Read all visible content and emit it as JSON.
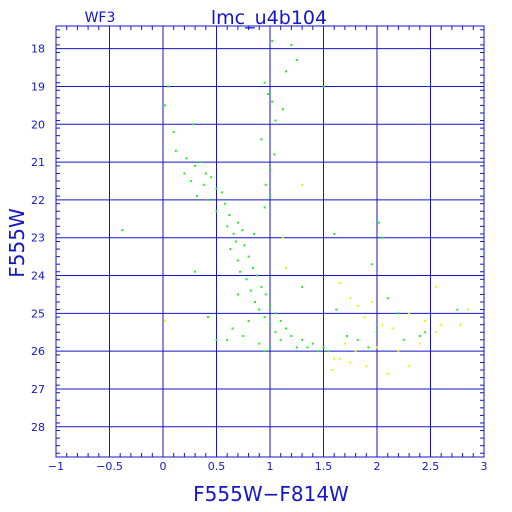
{
  "colors": {
    "axis": "#1515c8",
    "main_points": "#22ee22",
    "secondary_points": "#f2f200",
    "background": "#ffffff"
  },
  "chart_data": {
    "type": "scatter",
    "title": "lmc_u4b104",
    "panel_label": "WF3",
    "xlabel": "F555W−F814W",
    "ylabel": "F555W",
    "xlim": [
      -1,
      3
    ],
    "ylim": [
      28.8,
      17.4
    ],
    "y_inverted": true,
    "grid": true,
    "x_ticks": [
      -1,
      -0.5,
      0,
      0.5,
      1,
      1.5,
      2,
      2.5,
      3
    ],
    "x_tick_labels": [
      "−1",
      "−0.5",
      "0",
      "0.5",
      "1",
      "1.5",
      "2",
      "2.5",
      "3"
    ],
    "y_ticks": [
      18,
      19,
      20,
      21,
      22,
      23,
      24,
      25,
      26,
      27,
      28
    ],
    "y_tick_labels": [
      "18",
      "19",
      "20",
      "21",
      "22",
      "23",
      "24",
      "25",
      "26",
      "27",
      "28"
    ],
    "series": [
      {
        "color": "green",
        "points": [
          [
            0.05,
            19.0
          ],
          [
            0.02,
            19.5
          ],
          [
            0.1,
            20.2
          ],
          [
            0.28,
            20.0
          ],
          [
            0.12,
            20.7
          ],
          [
            0.22,
            20.9
          ],
          [
            0.3,
            21.1
          ],
          [
            0.35,
            21.0
          ],
          [
            0.4,
            21.3
          ],
          [
            0.2,
            21.3
          ],
          [
            0.26,
            21.5
          ],
          [
            0.38,
            21.6
          ],
          [
            0.45,
            21.4
          ],
          [
            0.5,
            21.7
          ],
          [
            0.55,
            21.8
          ],
          [
            0.32,
            21.9
          ],
          [
            0.42,
            22.0
          ],
          [
            0.58,
            22.1
          ],
          [
            0.5,
            22.3
          ],
          [
            0.62,
            22.4
          ],
          [
            0.7,
            22.6
          ],
          [
            0.6,
            22.7
          ],
          [
            0.66,
            22.9
          ],
          [
            0.74,
            22.8
          ],
          [
            0.68,
            23.1
          ],
          [
            0.76,
            23.2
          ],
          [
            0.63,
            23.3
          ],
          [
            0.8,
            23.5
          ],
          [
            0.7,
            23.6
          ],
          [
            0.84,
            23.8
          ],
          [
            0.72,
            23.9
          ],
          [
            0.88,
            24.0
          ],
          [
            0.78,
            24.1
          ],
          [
            0.92,
            24.3
          ],
          [
            0.82,
            24.4
          ],
          [
            0.96,
            24.5
          ],
          [
            0.86,
            24.7
          ],
          [
            1.0,
            24.8
          ],
          [
            0.9,
            24.9
          ],
          [
            1.05,
            25.0
          ],
          [
            0.95,
            25.1
          ],
          [
            1.1,
            25.2
          ],
          [
            1.0,
            25.3
          ],
          [
            1.15,
            25.4
          ],
          [
            1.05,
            25.5
          ],
          [
            1.2,
            25.6
          ],
          [
            1.1,
            25.7
          ],
          [
            1.3,
            25.7
          ],
          [
            1.4,
            25.8
          ],
          [
            1.5,
            25.9
          ],
          [
            1.55,
            26.0
          ],
          [
            1.45,
            26.0
          ],
          [
            1.35,
            25.9
          ],
          [
            1.25,
            25.9
          ],
          [
            1.0,
            25.9
          ],
          [
            0.9,
            25.8
          ],
          [
            0.75,
            25.6
          ],
          [
            0.65,
            25.4
          ],
          [
            0.6,
            25.7
          ],
          [
            0.95,
            26.0
          ],
          [
            1.02,
            17.8
          ],
          [
            1.2,
            17.9
          ],
          [
            1.25,
            18.3
          ],
          [
            1.15,
            18.6
          ],
          [
            0.95,
            18.9
          ],
          [
            0.98,
            19.2
          ],
          [
            1.02,
            19.4
          ],
          [
            1.12,
            19.6
          ],
          [
            1.05,
            19.9
          ],
          [
            0.92,
            20.4
          ],
          [
            1.04,
            20.8
          ],
          [
            1.0,
            21.2
          ],
          [
            0.96,
            21.6
          ],
          [
            1.0,
            21.9
          ],
          [
            0.95,
            22.2
          ],
          [
            -0.38,
            22.8
          ],
          [
            0.3,
            23.9
          ],
          [
            0.42,
            25.1
          ],
          [
            0.5,
            25.7
          ],
          [
            1.5,
            19.0
          ],
          [
            1.6,
            22.9
          ],
          [
            1.62,
            24.9
          ],
          [
            1.72,
            25.6
          ],
          [
            1.82,
            25.7
          ],
          [
            1.92,
            25.9
          ],
          [
            2.0,
            25.5
          ],
          [
            2.02,
            22.6
          ],
          [
            2.05,
            23.0
          ],
          [
            2.1,
            24.6
          ],
          [
            2.25,
            25.7
          ],
          [
            2.4,
            25.6
          ],
          [
            2.75,
            24.9
          ],
          [
            2.78,
            25.3
          ],
          [
            2.45,
            25.5
          ],
          [
            1.95,
            23.7
          ],
          [
            2.2,
            25.0
          ],
          [
            1.3,
            24.3
          ],
          [
            0.7,
            24.5
          ],
          [
            0.8,
            25.2
          ],
          [
            0.85,
            22.9
          ]
        ]
      },
      {
        "color": "yellow",
        "points": [
          [
            1.3,
            21.6
          ],
          [
            1.12,
            23.0
          ],
          [
            1.65,
            24.2
          ],
          [
            1.75,
            24.6
          ],
          [
            1.82,
            24.8
          ],
          [
            1.95,
            24.7
          ],
          [
            1.88,
            25.1
          ],
          [
            2.05,
            25.3
          ],
          [
            2.15,
            25.4
          ],
          [
            2.3,
            25.0
          ],
          [
            2.55,
            24.3
          ],
          [
            2.6,
            25.3
          ],
          [
            2.78,
            25.3
          ],
          [
            2.2,
            26.0
          ],
          [
            2.3,
            26.4
          ],
          [
            2.1,
            26.6
          ],
          [
            1.9,
            26.4
          ],
          [
            1.75,
            26.3
          ],
          [
            1.65,
            26.2
          ],
          [
            1.8,
            26.0
          ],
          [
            2.0,
            25.9
          ],
          [
            2.4,
            25.8
          ],
          [
            2.55,
            25.5
          ],
          [
            2.85,
            24.9
          ],
          [
            1.58,
            26.5
          ],
          [
            1.7,
            25.8
          ],
          [
            2.45,
            25.2
          ],
          [
            0.02,
            25.2
          ],
          [
            1.15,
            23.8
          ],
          [
            1.6,
            26.2
          ]
        ]
      }
    ]
  }
}
